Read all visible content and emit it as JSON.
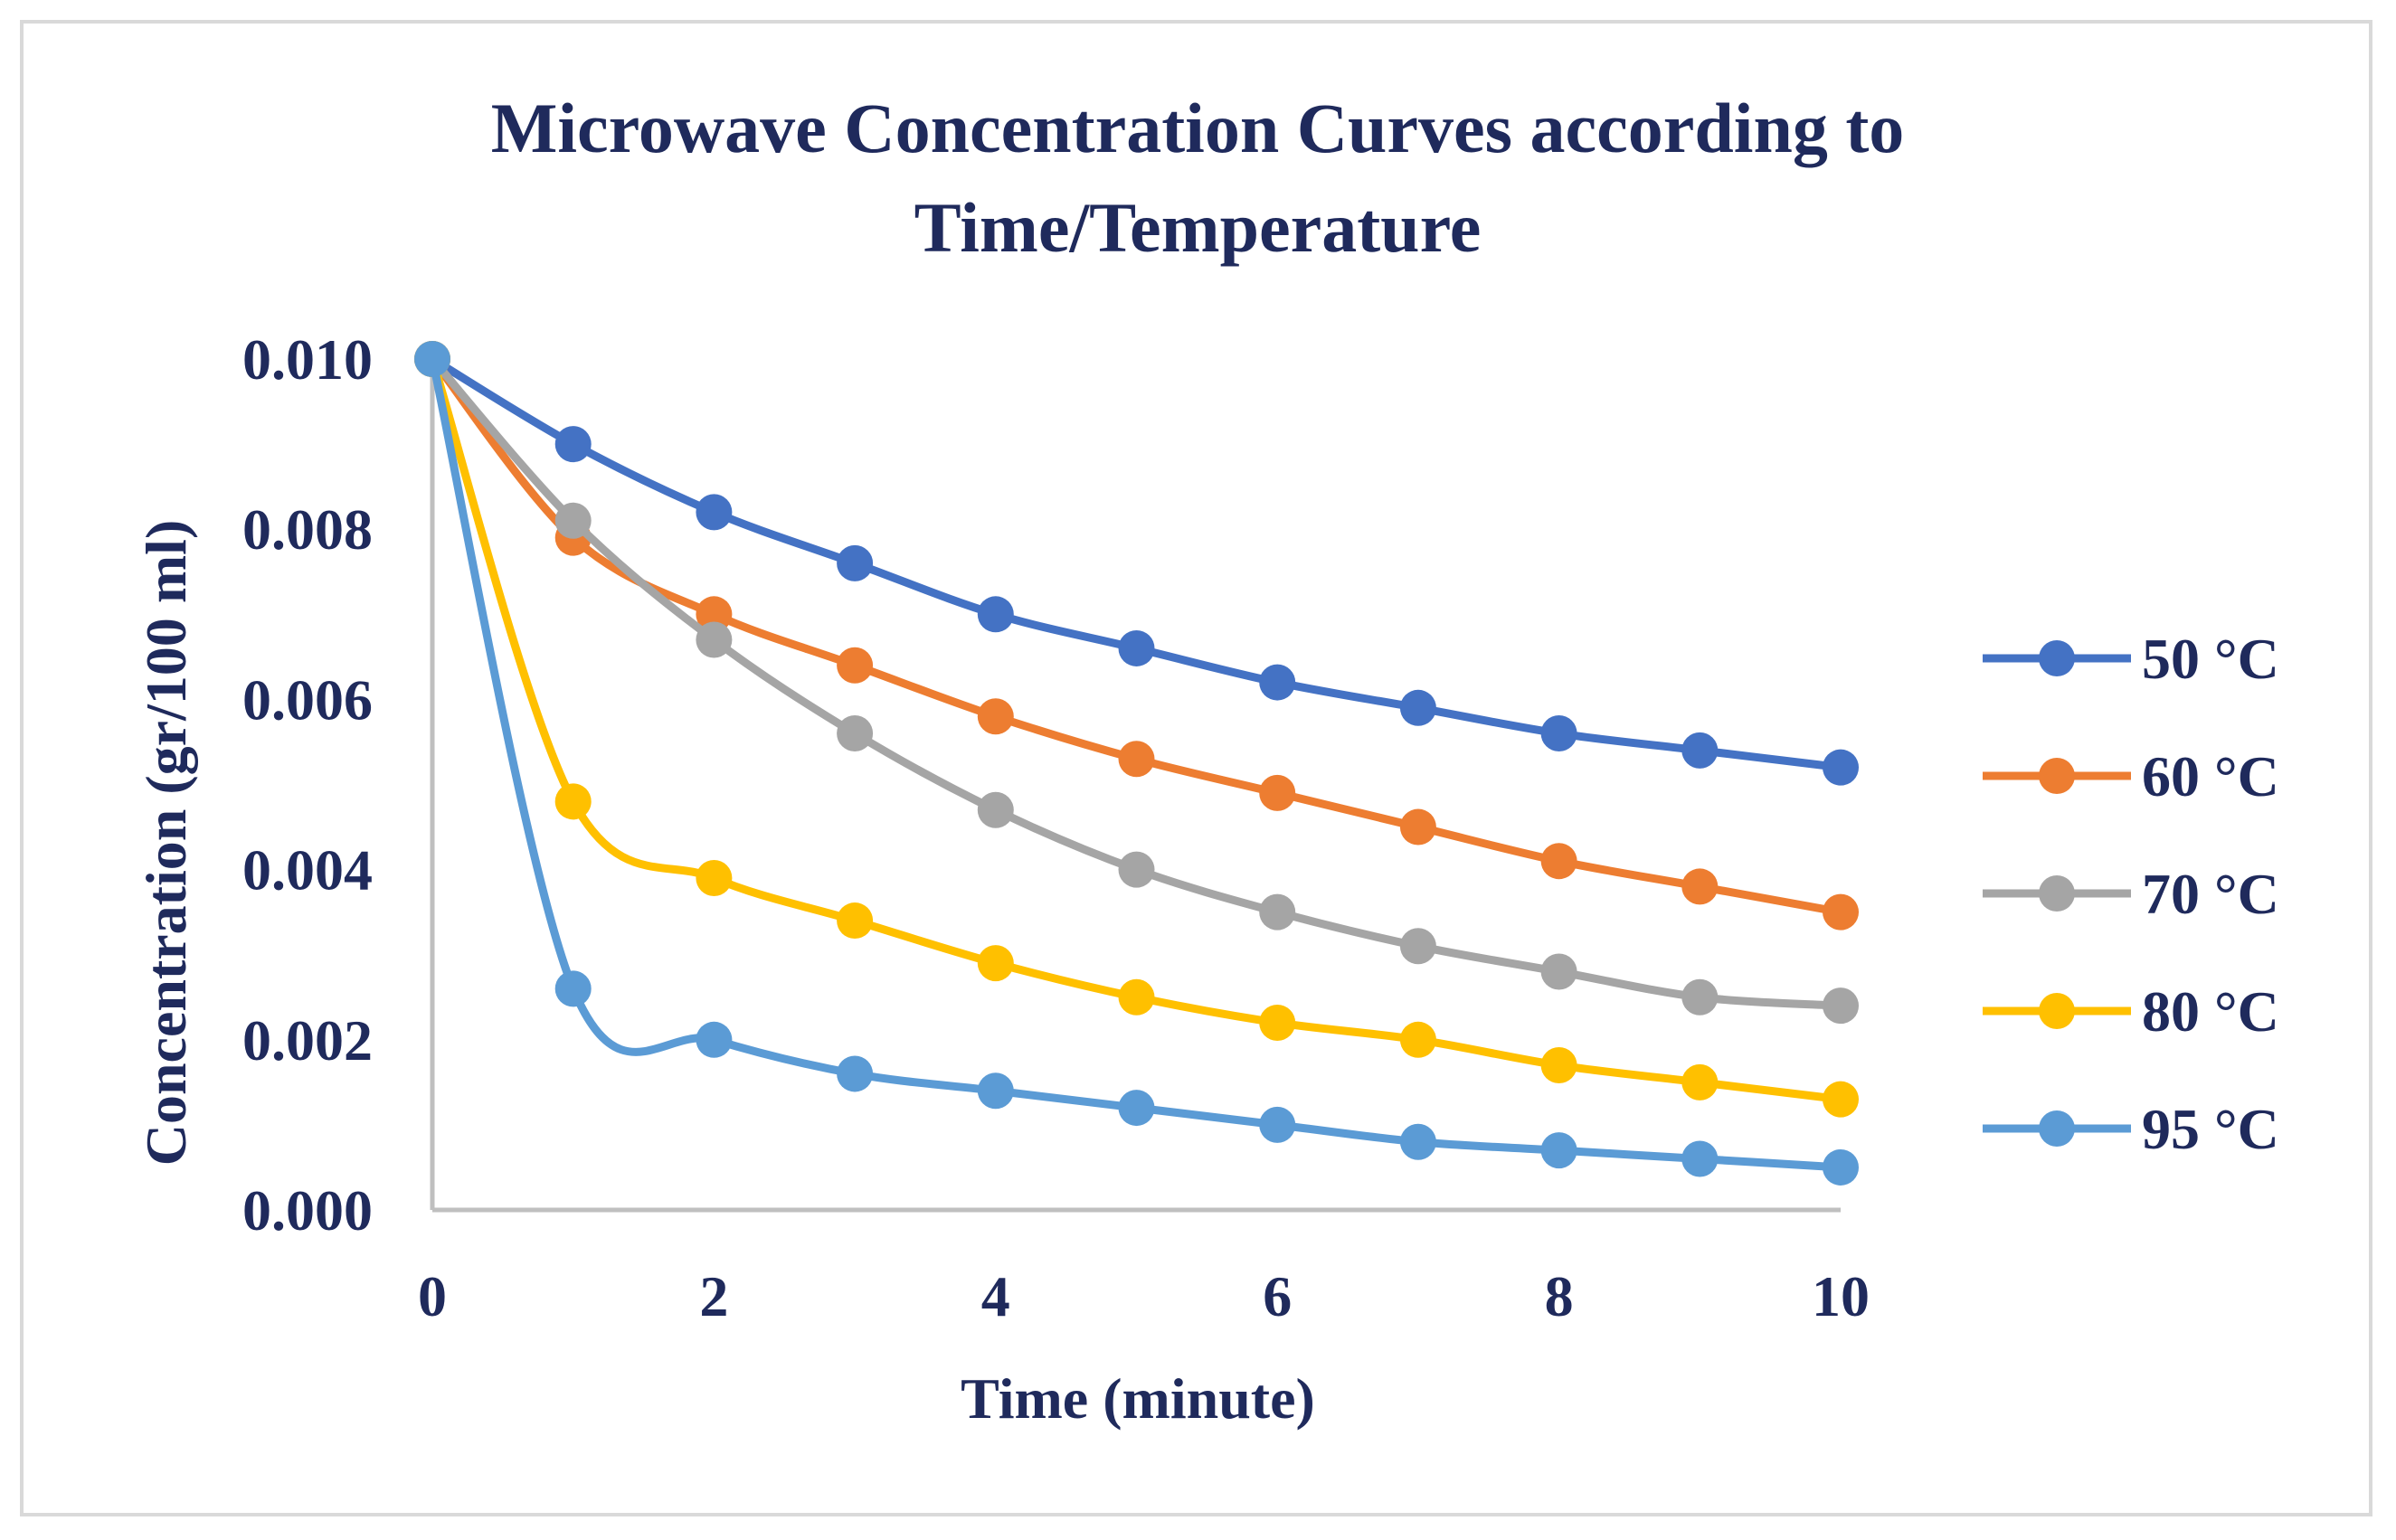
{
  "chart_data": {
    "type": "line",
    "title_lines": [
      "Microwave Concentration Curves according to",
      "Time/Temperature"
    ],
    "xlabel": "Time (minute)",
    "ylabel": "Concentration (gr/100 ml)",
    "xlim": [
      0,
      10
    ],
    "ylim": [
      0,
      0.01
    ],
    "x_ticks": [
      "0",
      "2",
      "4",
      "6",
      "8",
      "10"
    ],
    "x_tick_values": [
      0,
      2,
      4,
      6,
      8,
      10
    ],
    "y_ticks": [
      "0.000",
      "0.002",
      "0.004",
      "0.006",
      "0.008",
      "0.010"
    ],
    "y_tick_values": [
      0,
      0.002,
      0.004,
      0.006,
      0.008,
      0.01
    ],
    "grid": false,
    "legend_position": "right",
    "x": [
      0,
      1,
      2,
      3,
      4,
      5,
      6,
      7,
      8,
      9,
      10
    ],
    "series": [
      {
        "name": "50 °C",
        "color": "#4472c4",
        "values": [
          0.01,
          0.009,
          0.0082,
          0.0076,
          0.007,
          0.0066,
          0.0062,
          0.0059,
          0.0056,
          0.0054,
          0.0052
        ]
      },
      {
        "name": "60 °C",
        "color": "#ed7d31",
        "values": [
          0.01,
          0.0079,
          0.007,
          0.0064,
          0.0058,
          0.0053,
          0.0049,
          0.0045,
          0.0041,
          0.0038,
          0.0035
        ]
      },
      {
        "name": "70 °C",
        "color": "#a5a5a5",
        "values": [
          0.01,
          0.0081,
          0.0067,
          0.0056,
          0.0047,
          0.004,
          0.0035,
          0.0031,
          0.0028,
          0.0025,
          0.0024
        ]
      },
      {
        "name": "80 °C",
        "color": "#ffc000",
        "values": [
          0.01,
          0.0048,
          0.0039,
          0.0034,
          0.0029,
          0.0025,
          0.0022,
          0.002,
          0.0017,
          0.0015,
          0.0013
        ]
      },
      {
        "name": "95 °C",
        "color": "#5b9bd5",
        "values": [
          0.01,
          0.0026,
          0.002,
          0.0016,
          0.0014,
          0.0012,
          0.001,
          0.0008,
          0.0007,
          0.0006,
          0.0005
        ]
      }
    ]
  }
}
